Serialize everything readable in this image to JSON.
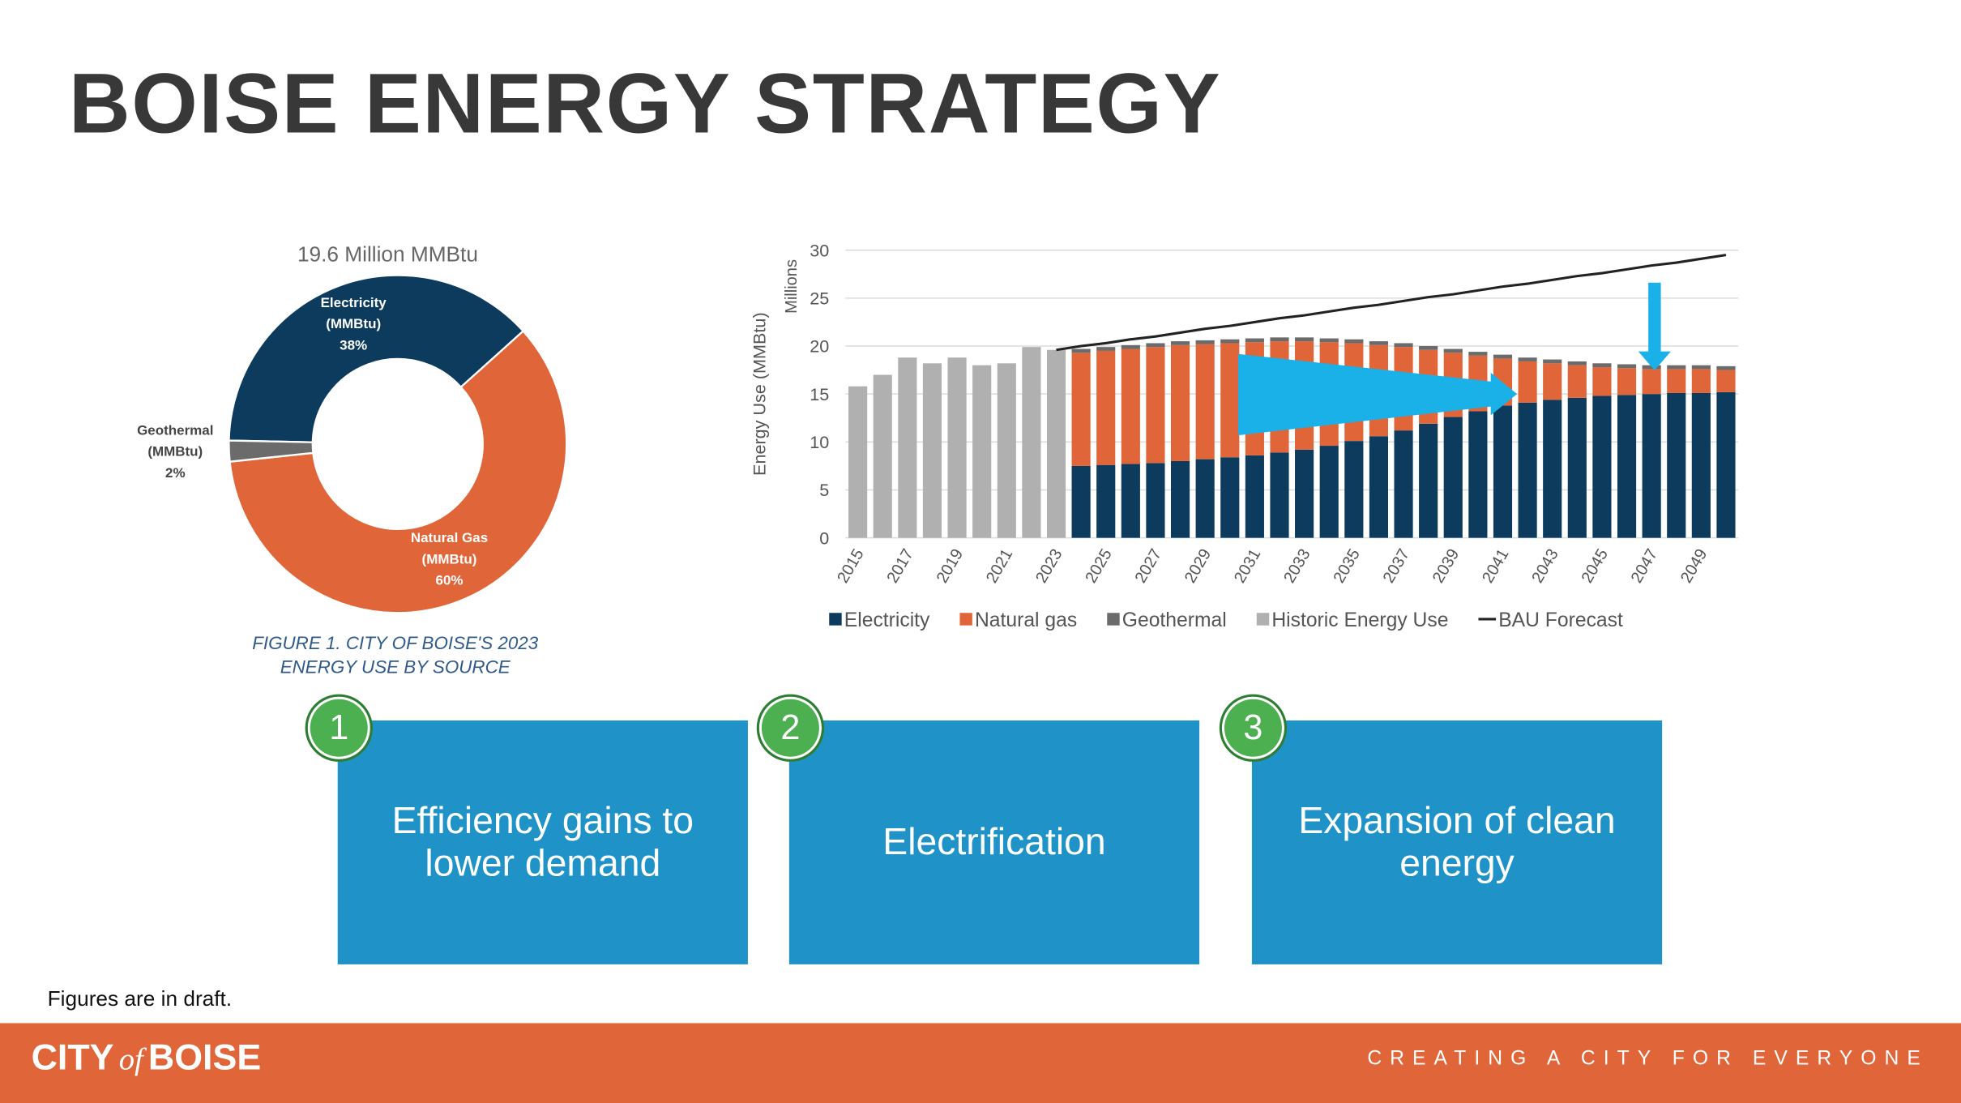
{
  "header": {
    "title": "BOISE ENERGY STRATEGY"
  },
  "chart_data": [
    {
      "type": "pie",
      "donut": true,
      "title": "19.6 Million MMBtu",
      "categories": [
        "Electricity (MMBtu)",
        "Natural Gas (MMBtu)",
        "Geothermal (MMBtu)"
      ],
      "values": [
        38,
        60,
        2
      ],
      "value_labels": [
        "38%",
        "60%",
        "2%"
      ],
      "colors": [
        "#0d3b5e",
        "#e0663a",
        "#6b6b6b"
      ],
      "caption": "FIGURE 1. CITY OF BOISE'S 2023 ENERGY USE BY SOURCE"
    },
    {
      "type": "bar",
      "stacked": true,
      "ylabel": "Energy Use (MMBtu)",
      "yunit_label": "Millions",
      "categories": [
        "2015",
        null,
        "2017",
        null,
        "2019",
        null,
        "2021",
        null,
        "2023",
        null,
        "2025",
        null,
        "2027",
        null,
        "2029",
        null,
        "2031",
        null,
        "2033",
        null,
        "2035",
        null,
        "2037",
        null,
        "2039",
        null,
        "2041",
        null,
        "2043",
        null,
        "2045",
        null,
        "2047",
        null,
        "2049",
        null
      ],
      "series": [
        {
          "name": "Electricity",
          "color": "#0d3b5e",
          "values": [
            null,
            null,
            null,
            null,
            null,
            null,
            null,
            null,
            null,
            7.5,
            7.6,
            7.7,
            7.8,
            8.0,
            8.2,
            8.4,
            8.6,
            8.9,
            9.2,
            9.6,
            10.1,
            10.6,
            11.2,
            11.9,
            12.6,
            13.2,
            13.8,
            14.1,
            14.4,
            14.6,
            14.8,
            14.9,
            15.0,
            15.1,
            15.1,
            15.2
          ]
        },
        {
          "name": "Natural gas",
          "color": "#e0663a",
          "values": [
            null,
            null,
            null,
            null,
            null,
            null,
            null,
            null,
            null,
            11.8,
            11.9,
            12.0,
            12.1,
            12.1,
            12.0,
            11.9,
            11.8,
            11.6,
            11.3,
            10.8,
            10.2,
            9.5,
            8.7,
            7.7,
            6.7,
            5.8,
            4.9,
            4.3,
            3.8,
            3.4,
            3.0,
            2.8,
            2.6,
            2.5,
            2.5,
            2.3
          ]
        },
        {
          "name": "Geothermal",
          "color": "#6b6b6b",
          "values": [
            null,
            null,
            null,
            null,
            null,
            null,
            null,
            null,
            null,
            0.4,
            0.4,
            0.4,
            0.4,
            0.4,
            0.4,
            0.4,
            0.4,
            0.4,
            0.4,
            0.4,
            0.4,
            0.4,
            0.4,
            0.4,
            0.4,
            0.4,
            0.4,
            0.4,
            0.4,
            0.4,
            0.4,
            0.4,
            0.4,
            0.4,
            0.4,
            0.4
          ]
        },
        {
          "name": "Historic Energy Use",
          "color": "#b0b0b0",
          "values": [
            15.8,
            17.0,
            18.8,
            18.2,
            18.8,
            18.0,
            18.2,
            19.9,
            19.6,
            null,
            null,
            null,
            null,
            null,
            null,
            null,
            null,
            null,
            null,
            null,
            null,
            null,
            null,
            null,
            null,
            null,
            null,
            null,
            null,
            null,
            null,
            null,
            null,
            null,
            null,
            null
          ]
        },
        {
          "name": "BAU Forecast",
          "type": "line",
          "color": "#222222",
          "values": [
            null,
            null,
            null,
            null,
            null,
            null,
            null,
            null,
            19.6,
            20.0,
            20.3,
            20.7,
            21.0,
            21.4,
            21.8,
            22.1,
            22.5,
            22.9,
            23.2,
            23.6,
            24.0,
            24.3,
            24.7,
            25.1,
            25.4,
            25.8,
            26.2,
            26.5,
            26.9,
            27.3,
            27.6,
            28.0,
            28.4,
            28.7,
            29.1,
            29.5
          ]
        }
      ],
      "ylim": [
        0,
        30
      ],
      "yticks": [
        0,
        5,
        10,
        15,
        20,
        25,
        30
      ],
      "grid": true,
      "legend": "bottom"
    }
  ],
  "strategies": [
    {
      "number": "1",
      "text": "Efficiency gains to lower demand"
    },
    {
      "number": "2",
      "text": "Electrification"
    },
    {
      "number": "3",
      "text": "Expansion of clean energy"
    }
  ],
  "footnote": "Figures are in draft.",
  "footer": {
    "logo": [
      "CITY",
      "of",
      "BOISE"
    ],
    "tagline": "CREATING A CITY FOR EVERYONE"
  }
}
